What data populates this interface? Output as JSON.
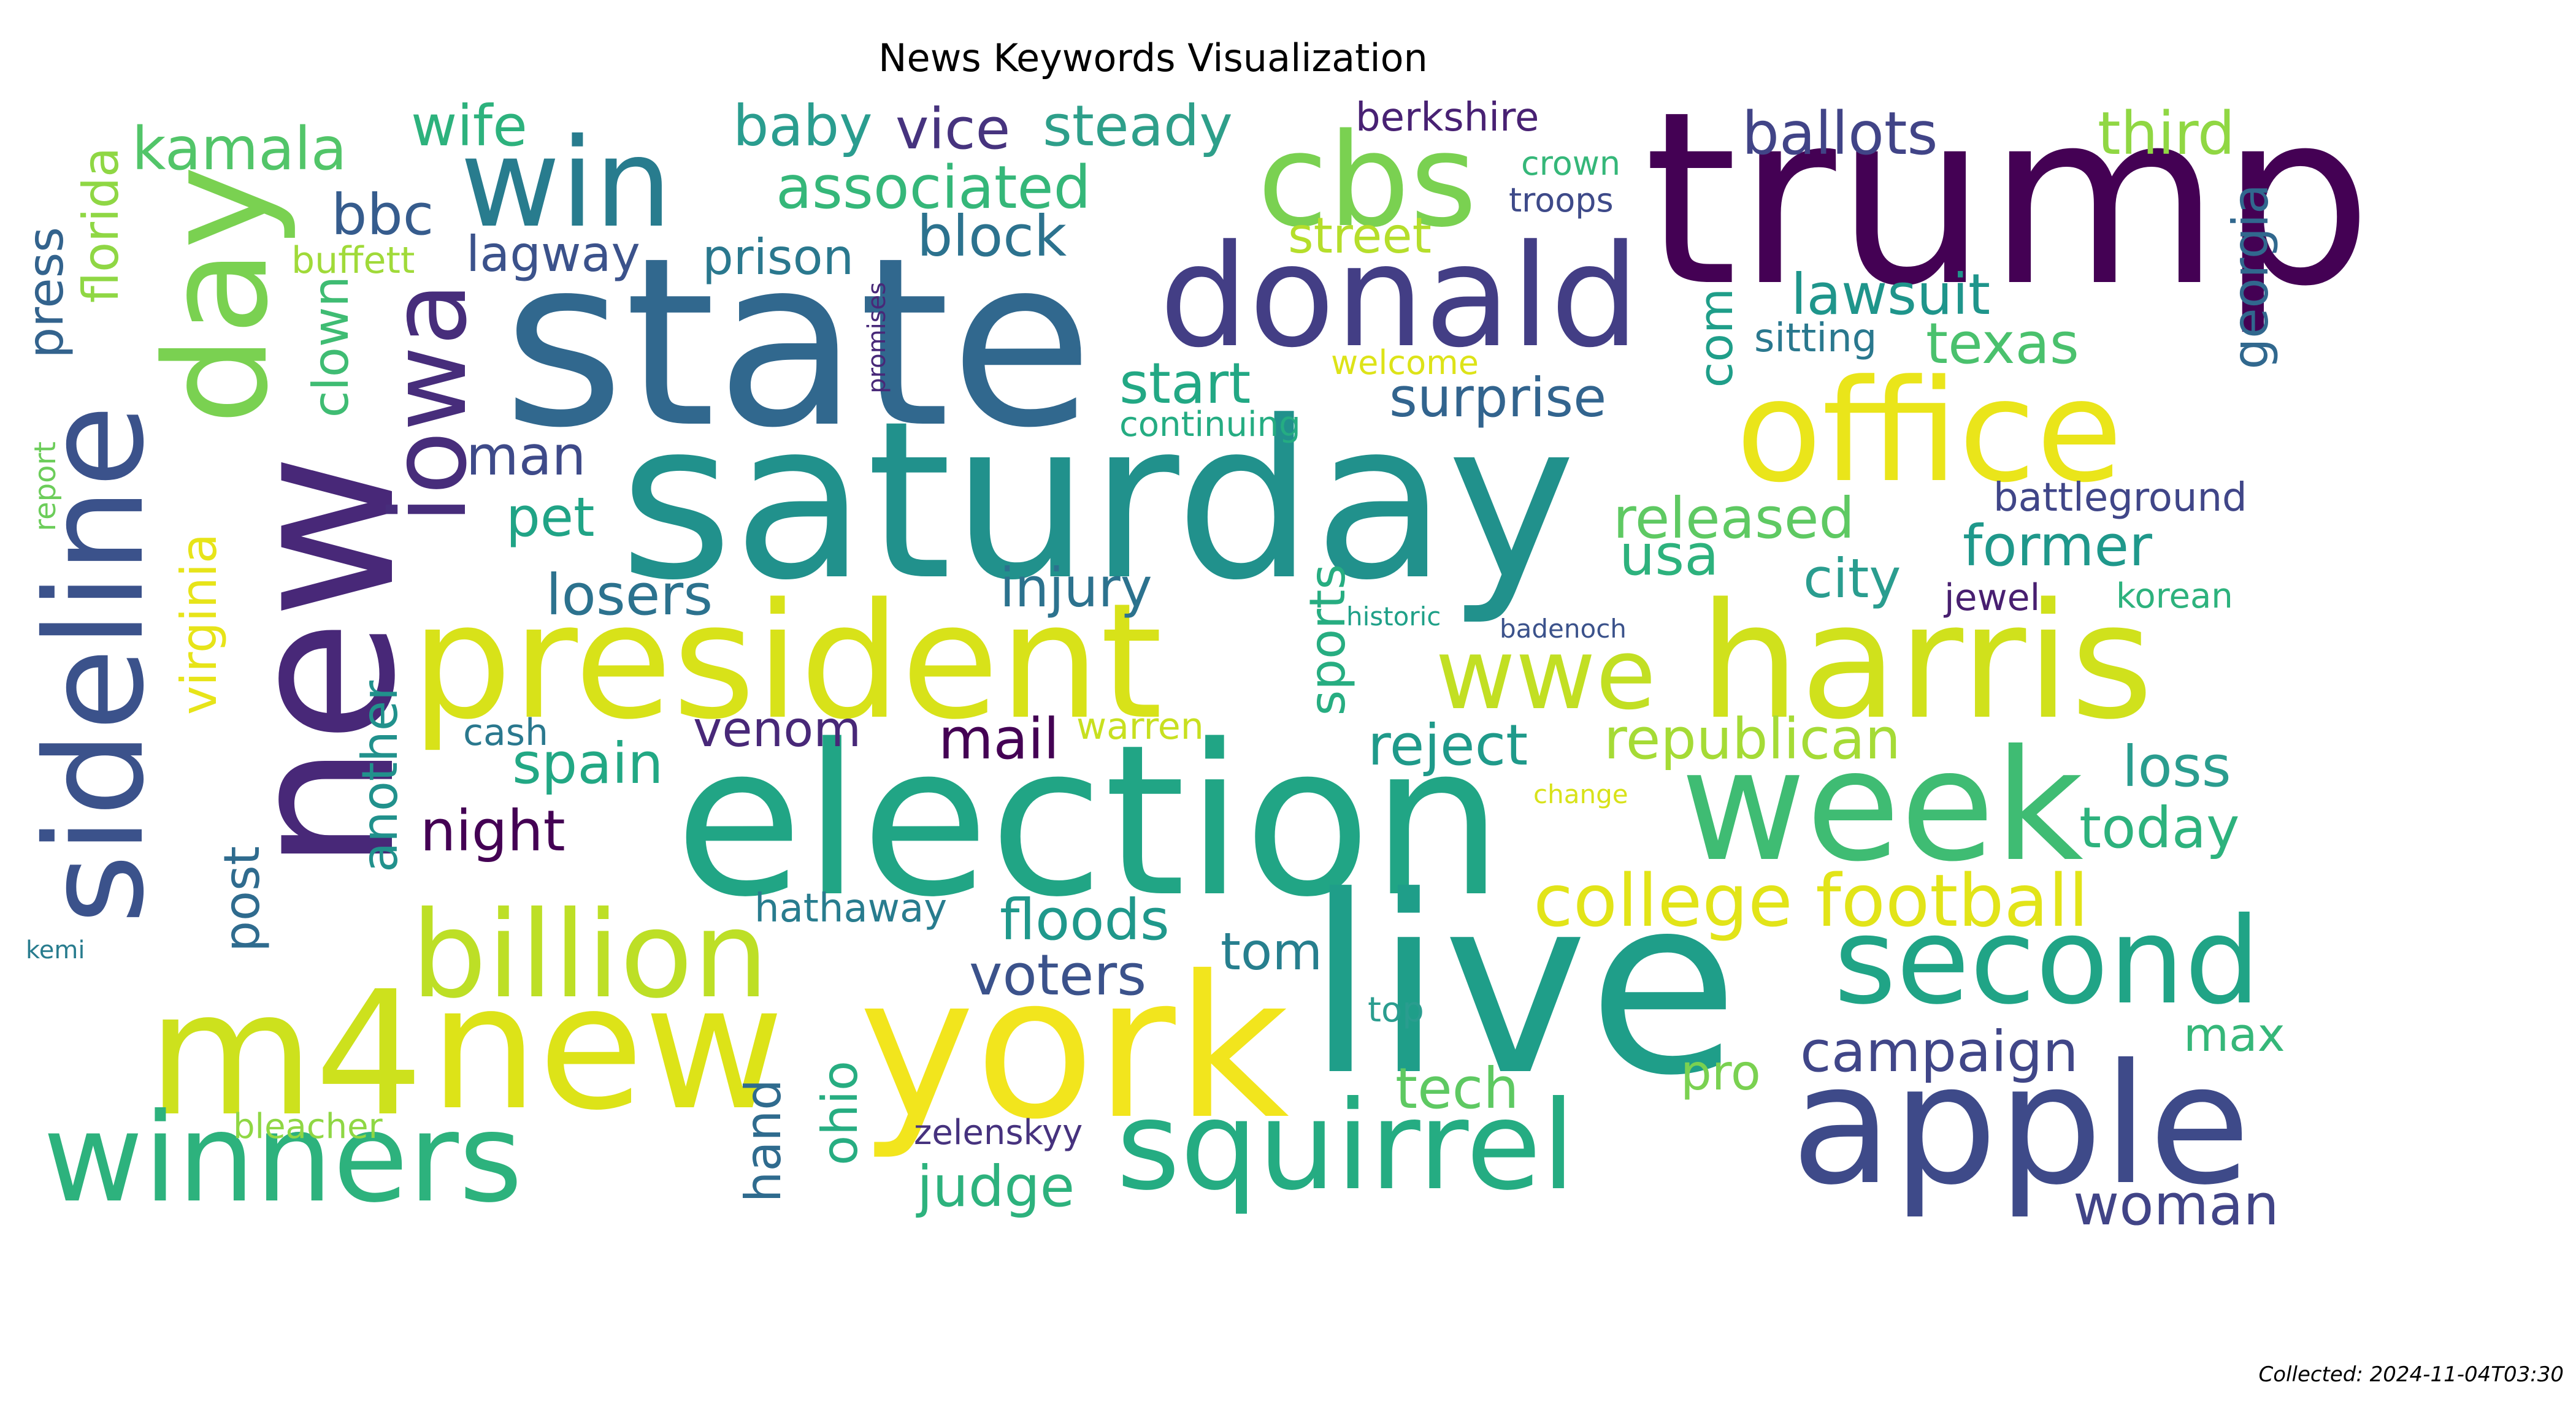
{
  "title": "News Keywords Visualization",
  "footer": "Collected: 2024-11-04T03:30",
  "words": [
    {
      "t": "trump",
      "c": "#440154"
    },
    {
      "t": "state",
      "c": "#31688e"
    },
    {
      "t": "saturday",
      "c": "#21918c"
    },
    {
      "t": "new",
      "c": "#482878"
    },
    {
      "t": "election",
      "c": "#21a585"
    },
    {
      "t": "live",
      "c": "#1f9e89"
    },
    {
      "t": "president",
      "c": "#d8e219"
    },
    {
      "t": "harris",
      "c": "#d0e11c"
    },
    {
      "t": "york",
      "c": "#f2e51d"
    },
    {
      "t": "m4",
      "c": "#cde11d"
    },
    {
      "t": "new",
      "c": "#dde318"
    },
    {
      "t": "office",
      "c": "#eae51a"
    },
    {
      "t": "donald",
      "c": "#433e85"
    },
    {
      "t": "cbs",
      "c": "#7ad151"
    },
    {
      "t": "win",
      "c": "#287c8e"
    },
    {
      "t": "day",
      "c": "#7ad151"
    },
    {
      "t": "sideline",
      "c": "#3b528b"
    },
    {
      "t": "week",
      "c": "#3fbc73"
    },
    {
      "t": "apple",
      "c": "#3e4a89"
    },
    {
      "t": "second",
      "c": "#20a486"
    },
    {
      "t": "billion",
      "c": "#bddf26"
    },
    {
      "t": "winners",
      "c": "#2db27d"
    },
    {
      "t": "squirrel",
      "c": "#25ac82"
    },
    {
      "t": "iowa",
      "c": "#472d7b"
    },
    {
      "t": "wwe",
      "c": "#c2df23"
    },
    {
      "t": "college football",
      "c": "#e2e418"
    },
    {
      "t": "kamala",
      "c": "#52c569"
    },
    {
      "t": "wife",
      "c": "#2db27d"
    },
    {
      "t": "baby",
      "c": "#2a9d8f"
    },
    {
      "t": "vice",
      "c": "#46337e"
    },
    {
      "t": "steady",
      "c": "#2e9f8a"
    },
    {
      "t": "berkshire",
      "c": "#482173"
    },
    {
      "t": "ballots",
      "c": "#414487"
    },
    {
      "t": "third",
      "c": "#90d743"
    },
    {
      "t": "associated",
      "c": "#35b779"
    },
    {
      "t": "crown",
      "c": "#35b779"
    },
    {
      "t": "troops",
      "c": "#3e4a89"
    },
    {
      "t": "bbc",
      "c": "#365c8d"
    },
    {
      "t": "buffett",
      "c": "#a0da39"
    },
    {
      "t": "lagway",
      "c": "#3b528b"
    },
    {
      "t": "prison",
      "c": "#2a788e"
    },
    {
      "t": "block",
      "c": "#2c728e"
    },
    {
      "t": "street",
      "c": "#b5de2b"
    },
    {
      "t": "lawsuit",
      "c": "#1f958b"
    },
    {
      "t": "sitting",
      "c": "#2a788e"
    },
    {
      "t": "texas",
      "c": "#4ac16d"
    },
    {
      "t": "welcome",
      "c": "#dde318"
    },
    {
      "t": "start",
      "c": "#22a884"
    },
    {
      "t": "surprise",
      "c": "#32648e"
    },
    {
      "t": "continuing",
      "c": "#25ac82"
    },
    {
      "t": "man",
      "c": "#3e4a89"
    },
    {
      "t": "pet",
      "c": "#20a486"
    },
    {
      "t": "released",
      "c": "#5ec962"
    },
    {
      "t": "usa",
      "c": "#2db27d"
    },
    {
      "t": "former",
      "c": "#1f988b"
    },
    {
      "t": "battleground",
      "c": "#404688"
    },
    {
      "t": "losers",
      "c": "#2c728e"
    },
    {
      "t": "injury",
      "c": "#2c728e"
    },
    {
      "t": "city",
      "c": "#2a9d8f"
    },
    {
      "t": "jewel",
      "c": "#481f70"
    },
    {
      "t": "korean",
      "c": "#2db27d"
    },
    {
      "t": "historic",
      "c": "#1fa088"
    },
    {
      "t": "badenoch",
      "c": "#3b528b"
    },
    {
      "t": "cash",
      "c": "#2a788e"
    },
    {
      "t": "warren",
      "c": "#c8e020"
    },
    {
      "t": "spain",
      "c": "#22a884"
    },
    {
      "t": "venom",
      "c": "#482878"
    },
    {
      "t": "mail",
      "c": "#440154"
    },
    {
      "t": "reject",
      "c": "#1f9a8a"
    },
    {
      "t": "republican",
      "c": "#a5db36"
    },
    {
      "t": "loss",
      "c": "#2a9d8f"
    },
    {
      "t": "change",
      "c": "#d8e219"
    },
    {
      "t": "night",
      "c": "#440154"
    },
    {
      "t": "today",
      "c": "#2db27d"
    },
    {
      "t": "hathaway",
      "c": "#287c8e"
    },
    {
      "t": "floods",
      "c": "#1f988b"
    },
    {
      "t": "tom",
      "c": "#277f8e"
    },
    {
      "t": "voters",
      "c": "#3b528b"
    },
    {
      "t": "top",
      "c": "#2a9d8f"
    },
    {
      "t": "max",
      "c": "#35b779"
    },
    {
      "t": "campaign",
      "c": "#404688"
    },
    {
      "t": "tech",
      "c": "#5ec962"
    },
    {
      "t": "pro",
      "c": "#7ad151"
    },
    {
      "t": "bleacher",
      "c": "#8fd744"
    },
    {
      "t": "zelenskyy",
      "c": "#46327e"
    },
    {
      "t": "judge",
      "c": "#2db27d"
    },
    {
      "t": "woman",
      "c": "#414487"
    },
    {
      "t": "kemi",
      "c": "#287c8e"
    },
    {
      "t": "florida",
      "c": "#8fd744"
    },
    {
      "t": "press",
      "c": "#33638d"
    },
    {
      "t": "report",
      "c": "#6ccd5a"
    },
    {
      "t": "virginia",
      "c": "#e7e419"
    },
    {
      "t": "clown",
      "c": "#3fbc73"
    },
    {
      "t": "post",
      "c": "#2f6b8e"
    },
    {
      "t": "another",
      "c": "#21918c"
    },
    {
      "t": "promises",
      "c": "#482878"
    },
    {
      "t": "com",
      "c": "#1f9e89"
    },
    {
      "t": "georgia",
      "c": "#31688e"
    },
    {
      "t": "sports",
      "c": "#27ad81"
    },
    {
      "t": "hand",
      "c": "#2f6b8e"
    },
    {
      "t": "ohio",
      "c": "#27ad81"
    }
  ]
}
